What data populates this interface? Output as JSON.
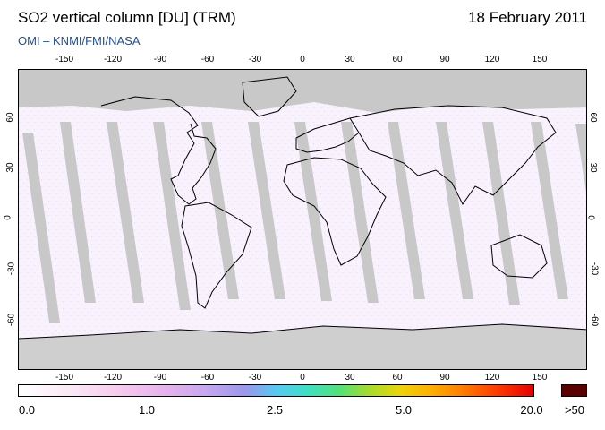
{
  "header": {
    "title": "SO2 vertical column [DU] (TRM)",
    "date": "18 February 2011",
    "subtitle": "OMI  –  KNMI/FMI/NASA"
  },
  "map": {
    "type": "map",
    "projection": "equirectangular",
    "lon_ticks": [
      "-150",
      "-120",
      "-90",
      "-60",
      "-30",
      "0",
      "30",
      "60",
      "90",
      "120",
      "150"
    ],
    "lat_ticks": [
      "60",
      "30",
      "0",
      "-30",
      "-60"
    ],
    "orbit_gap_color": "#c8c8c8",
    "no_data_color": "#c8c8c8"
  },
  "colorbar": {
    "labels": [
      "0.0",
      "1.0",
      "2.5",
      "5.0",
      "20.0"
    ],
    "overflow_label": ">50",
    "overflow_color": "#5a0000"
  }
}
